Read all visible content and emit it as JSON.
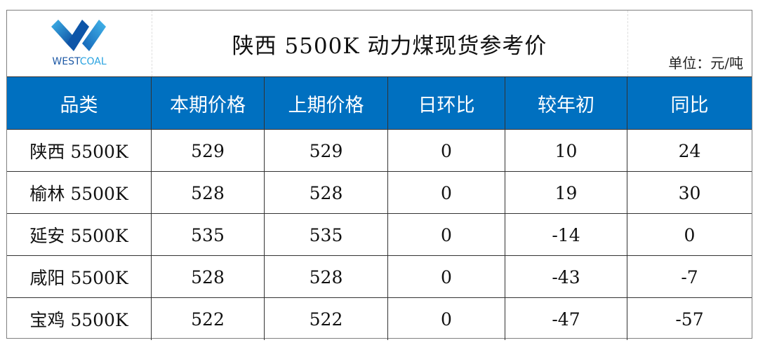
{
  "logo": {
    "brand": "WESTCOAL",
    "brand_part1": "WEST",
    "brand_part2": "COAL"
  },
  "title": "陕西 5500K 动力煤现货参考价",
  "unit": "单位：元/吨",
  "colors": {
    "header_bg": "#0070C0",
    "header_text": "#FFFFFF"
  },
  "columns": [
    "品类",
    "本期价格",
    "上期价格",
    "日环比",
    "较年初",
    "同比"
  ],
  "rows": [
    [
      "陕西 5500K",
      "529",
      "529",
      "0",
      "10",
      "24"
    ],
    [
      "榆林 5500K",
      "528",
      "528",
      "0",
      "19",
      "30"
    ],
    [
      "延安 5500K",
      "535",
      "535",
      "0",
      "-14",
      "0"
    ],
    [
      "咸阳 5500K",
      "528",
      "528",
      "0",
      "-43",
      "-7"
    ],
    [
      "宝鸡 5500K",
      "522",
      "522",
      "0",
      "-47",
      "-57"
    ]
  ]
}
